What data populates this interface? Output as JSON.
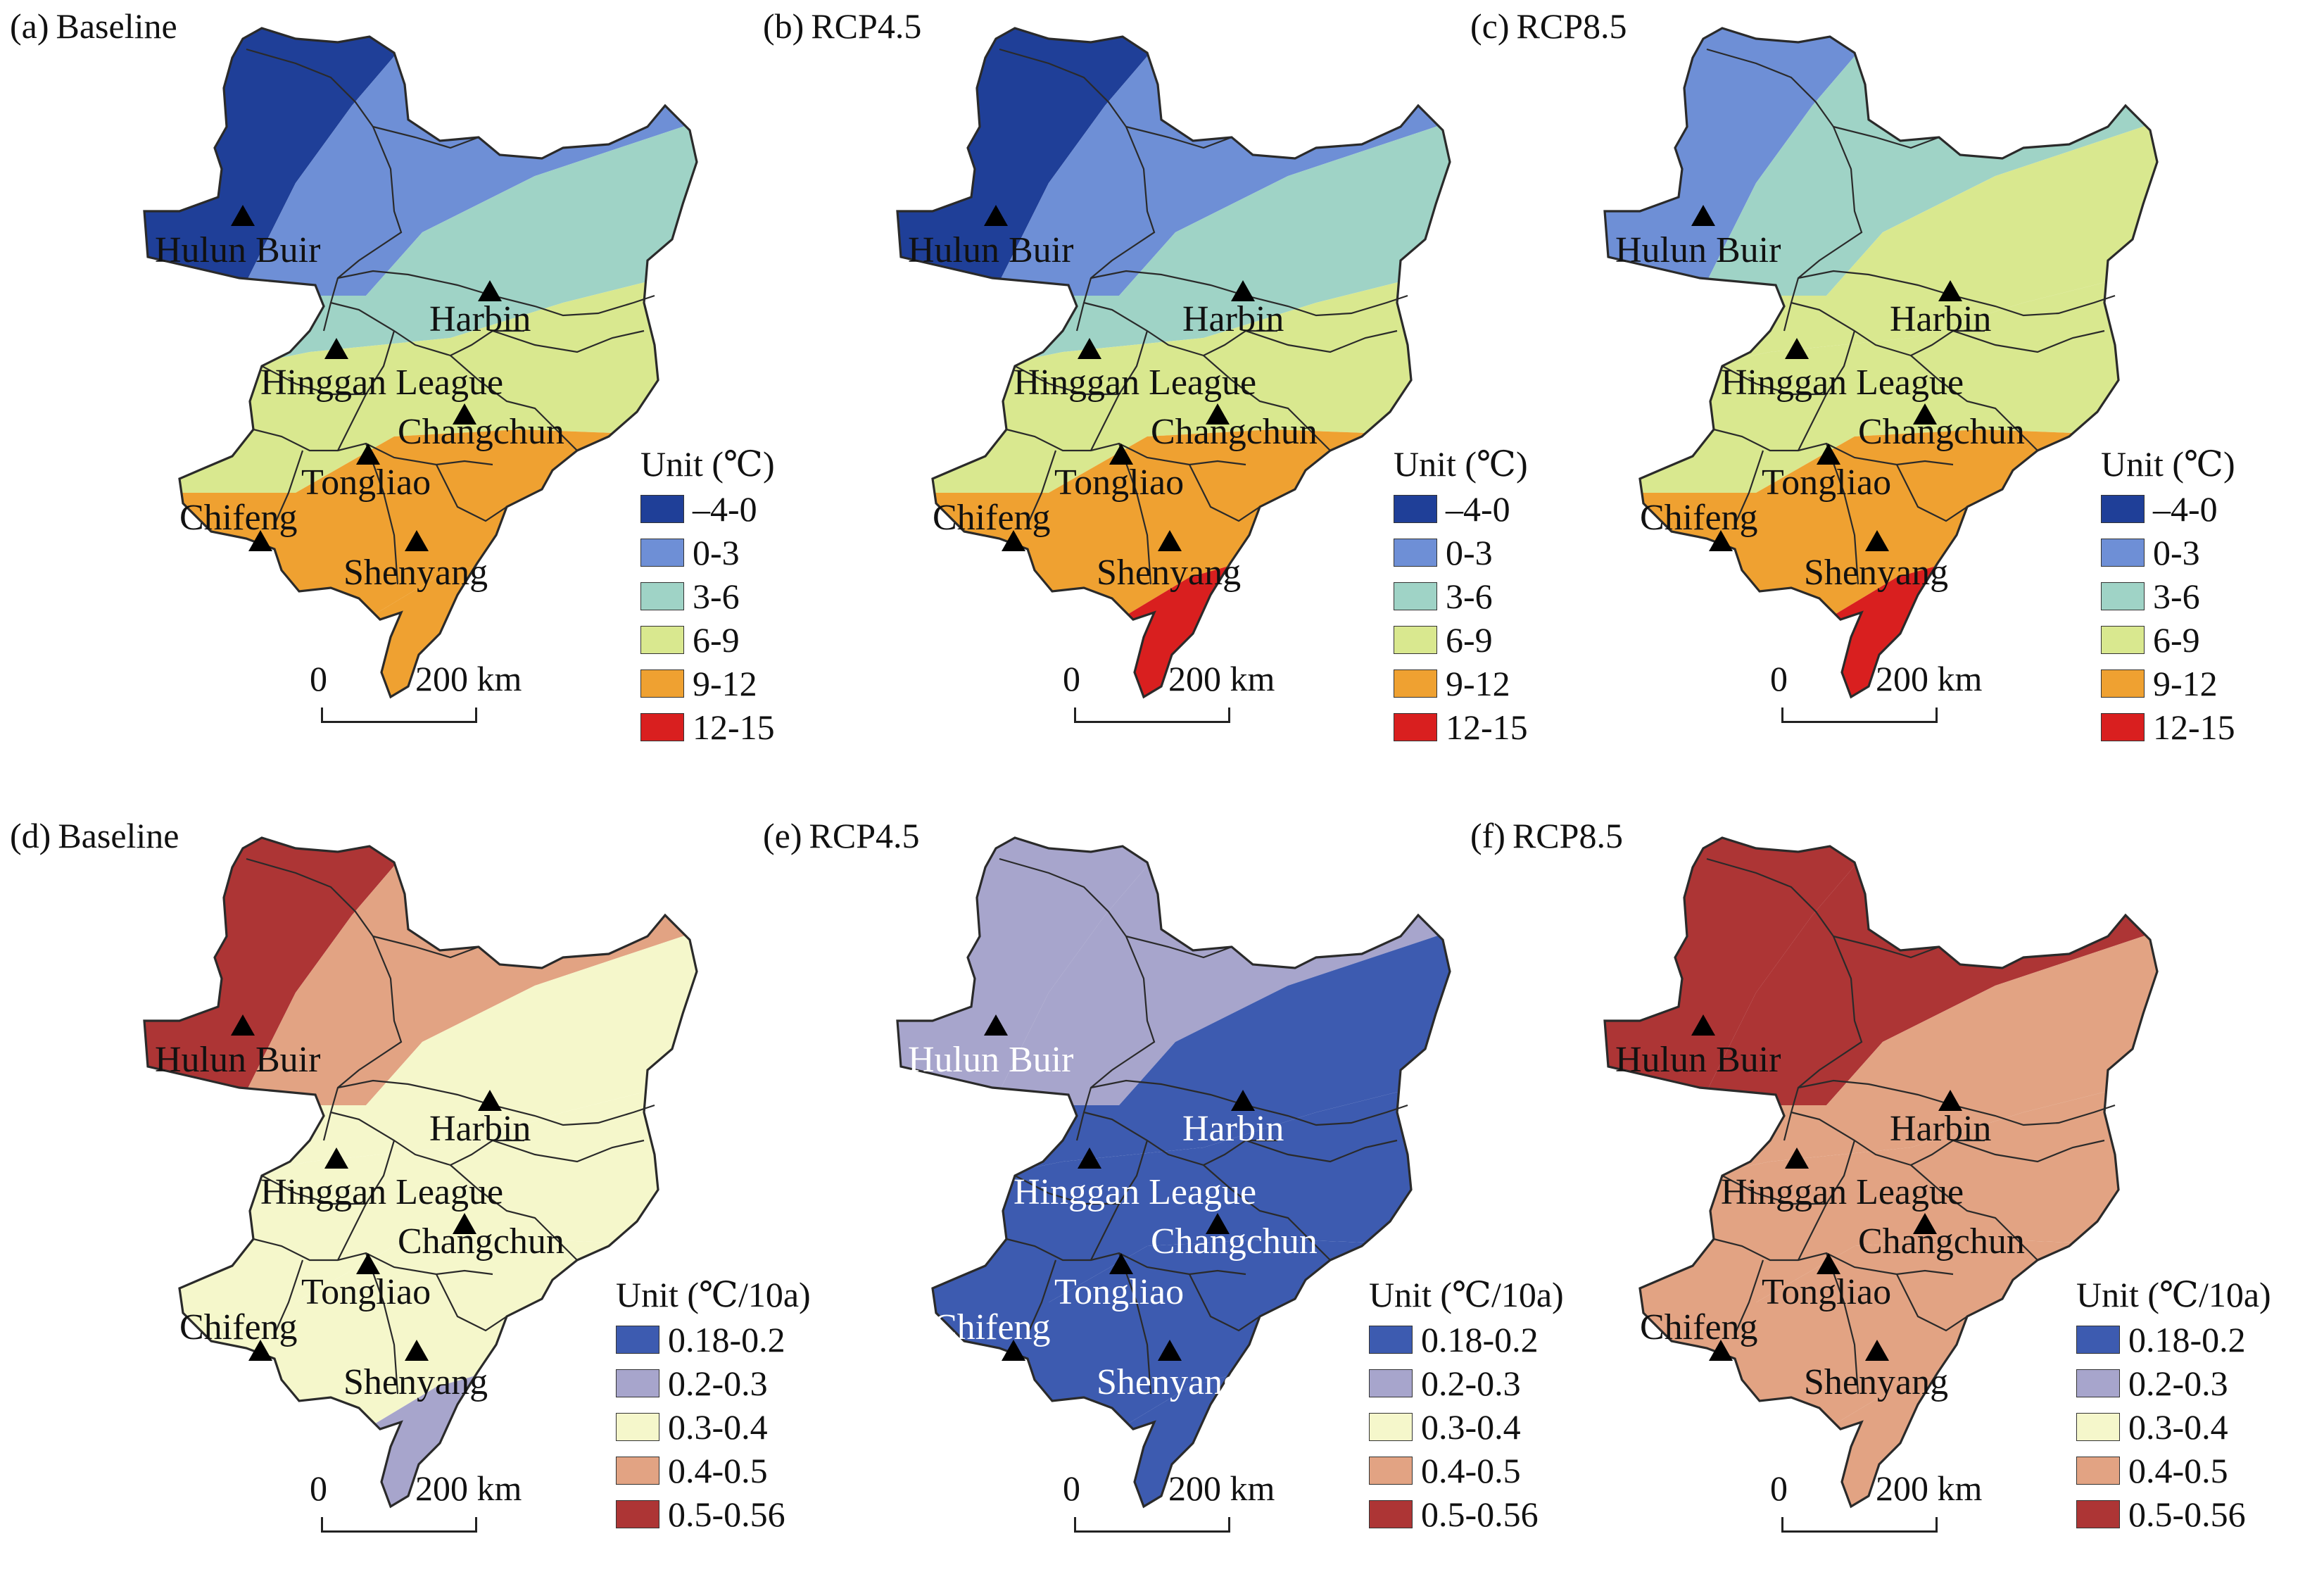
{
  "colors": {
    "temp_-4_0": "#1f3f98",
    "temp_0_3": "#6e8fd6",
    "temp_3_6": "#9fd3c6",
    "temp_6_9": "#d9e88f",
    "temp_9_12": "#efa131",
    "temp_12_15": "#d91f1f",
    "trend_0.18_0.2": "#3d5bb0",
    "trend_0.2_0.3": "#a7a5cc",
    "trend_0.3_0.4": "#f5f7cb",
    "trend_0.4_0.5": "#e2a383",
    "trend_0.5_0.56": "#ad3535",
    "boundary": "#2a2a2a"
  },
  "cities": [
    "Hulun Buir",
    "Harbin",
    "Hinggan League",
    "Changchun",
    "Tongliao",
    "Chifeng",
    "Shenyang"
  ],
  "scalebar": {
    "zero": "0",
    "distance": "200 km"
  },
  "legends": {
    "temperature": {
      "title": "Unit (℃)",
      "items": [
        {
          "label": "–4-0",
          "color": "#1f3f98"
        },
        {
          "label": "0-3",
          "color": "#6e8fd6"
        },
        {
          "label": "3-6",
          "color": "#9fd3c6"
        },
        {
          "label": "6-9",
          "color": "#d9e88f"
        },
        {
          "label": "9-12",
          "color": "#efa131"
        },
        {
          "label": "12-15",
          "color": "#d91f1f"
        }
      ]
    },
    "trend": {
      "title": "Unit (℃/10a)",
      "items": [
        {
          "label": "0.18-0.2",
          "color": "#3d5bb0"
        },
        {
          "label": "0.2-0.3",
          "color": "#a7a5cc"
        },
        {
          "label": "0.3-0.4",
          "color": "#f5f7cb"
        },
        {
          "label": "0.4-0.5",
          "color": "#e2a383"
        },
        {
          "label": "0.5-0.56",
          "color": "#ad3535"
        }
      ]
    }
  },
  "panels": [
    {
      "id": "a",
      "letter": "(a)",
      "scenario": "Baseline",
      "legend": "temperature",
      "label_color": "#111111",
      "zones": [
        "temp_-4_0",
        "temp_0_3",
        "temp_3_6",
        "temp_6_9",
        "temp_9_12",
        "none"
      ]
    },
    {
      "id": "b",
      "letter": "(b)",
      "scenario": "RCP4.5",
      "legend": "temperature",
      "label_color": "#111111",
      "zones": [
        "temp_-4_0",
        "temp_0_3",
        "temp_3_6",
        "temp_6_9",
        "temp_9_12",
        "temp_12_15"
      ]
    },
    {
      "id": "c",
      "letter": "(c)",
      "scenario": "RCP8.5",
      "legend": "temperature",
      "label_color": "#111111",
      "zones": [
        "temp_0_3",
        "temp_3_6",
        "temp_6_9",
        "temp_6_9",
        "temp_9_12",
        "temp_12_15"
      ]
    },
    {
      "id": "d",
      "letter": "(d)",
      "scenario": "Baseline",
      "legend": "trend",
      "label_color": "#111111",
      "zones": [
        "trend_0.5_0.56",
        "trend_0.4_0.5",
        "trend_0.3_0.4",
        "trend_0.3_0.4",
        "trend_0.3_0.4",
        "trend_0.2_0.3"
      ]
    },
    {
      "id": "e",
      "letter": "(e)",
      "scenario": "RCP4.5",
      "legend": "trend",
      "label_color": "#ffffff",
      "zones": [
        "trend_0.2_0.3",
        "trend_0.2_0.3",
        "trend_0.18_0.2",
        "trend_0.18_0.2",
        "trend_0.18_0.2",
        "trend_0.18_0.2"
      ]
    },
    {
      "id": "f",
      "letter": "(f)",
      "scenario": "RCP8.5",
      "legend": "trend",
      "label_color": "#111111",
      "zones": [
        "trend_0.5_0.56",
        "trend_0.5_0.56",
        "trend_0.4_0.5",
        "trend_0.4_0.5",
        "trend_0.4_0.5",
        "trend_0.4_0.5"
      ]
    }
  ]
}
